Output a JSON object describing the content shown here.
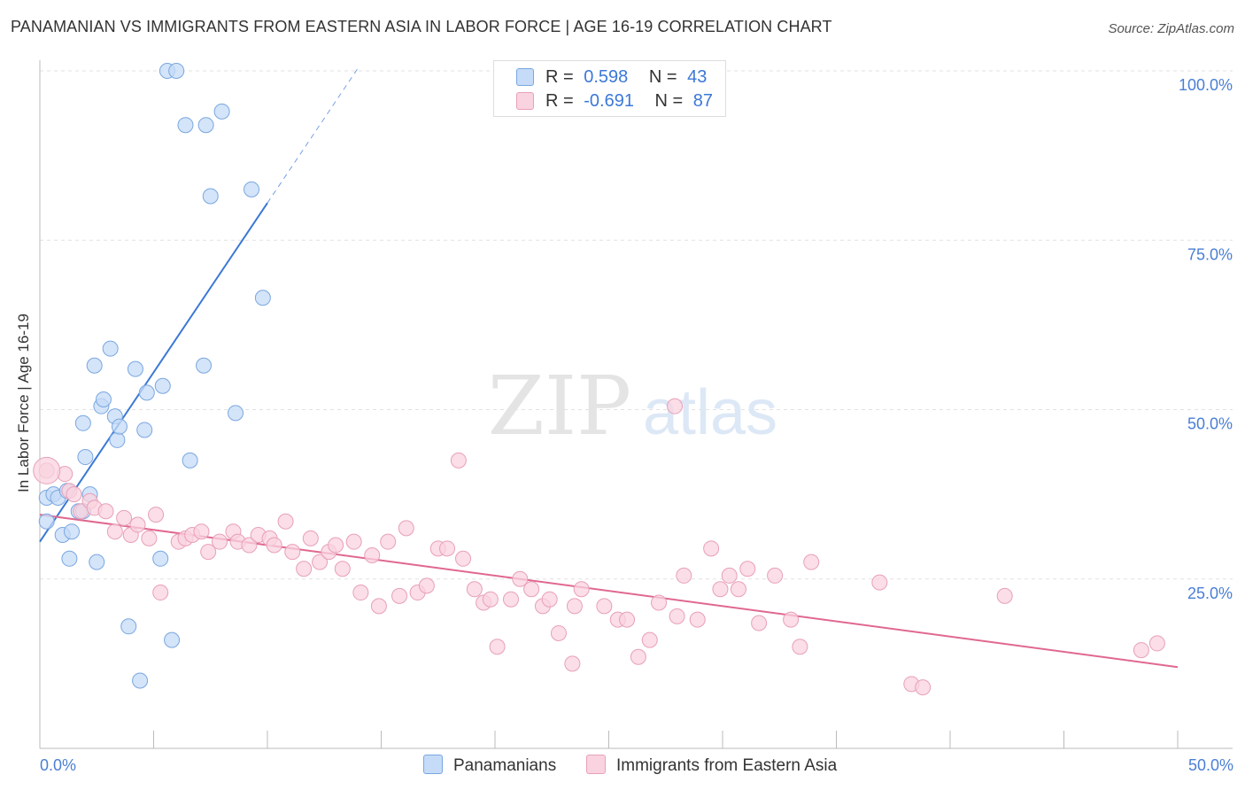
{
  "title": "PANAMANIAN VS IMMIGRANTS FROM EASTERN ASIA IN LABOR FORCE | AGE 16-19 CORRELATION CHART",
  "source": "Source: ZipAtlas.com",
  "watermark": {
    "zip": "ZIP",
    "atlas": "atlas"
  },
  "stats": [
    {
      "r_label": "R =",
      "r": "0.598",
      "n_label": "N =",
      "n": "43",
      "color": "#a8c8f0",
      "border": "#6a9fe0"
    },
    {
      "r_label": "R =",
      "r": "-0.691",
      "n_label": "N =",
      "n": "87",
      "color": "#f8c0d0",
      "border": "#e890b0"
    }
  ],
  "legend": [
    {
      "label": "Panamanians",
      "color": "#c5dbf7",
      "border": "#7aa7e0"
    },
    {
      "label": "Immigrants from Eastern Asia",
      "color": "#f9d3df",
      "border": "#e8a0b8"
    }
  ],
  "chart_data": {
    "type": "scatter",
    "title": "PANAMANIAN VS IMMIGRANTS FROM EASTERN ASIA IN LABOR FORCE | AGE 16-19 CORRELATION CHART",
    "xlabel": "",
    "ylabel": "In Labor Force | Age 16-19",
    "xlim": [
      0,
      50
    ],
    "ylim": [
      0,
      105
    ],
    "x_tick_labels": [
      "0.0%",
      "50.0%"
    ],
    "y_tick_labels": [
      "25.0%",
      "50.0%",
      "75.0%",
      "100.0%"
    ],
    "y_ticks": [
      25,
      50,
      75,
      100
    ],
    "grid": true,
    "series": [
      {
        "name": "Panamanians",
        "color": "#7aa7e0",
        "fill": "#c5dbf7",
        "line_color": "#3a78d6",
        "trend": {
          "x0": 0,
          "y0": 30.5,
          "x1": 10,
          "y1": 80.5,
          "dash_x1": 14,
          "dash_y1": 100.5
        },
        "points": [
          [
            0.3,
            33.5
          ],
          [
            0.3,
            37
          ],
          [
            0.6,
            37.5
          ],
          [
            0.8,
            37
          ],
          [
            1.0,
            31.5
          ],
          [
            1.2,
            38
          ],
          [
            1.3,
            28
          ],
          [
            1.4,
            32
          ],
          [
            1.7,
            35
          ],
          [
            1.9,
            48
          ],
          [
            1.9,
            35
          ],
          [
            2.0,
            43
          ],
          [
            2.2,
            37.5
          ],
          [
            2.4,
            56.5
          ],
          [
            2.5,
            27.5
          ],
          [
            2.7,
            50.5
          ],
          [
            2.8,
            51.5
          ],
          [
            3.1,
            59
          ],
          [
            3.3,
            49
          ],
          [
            3.4,
            45.5
          ],
          [
            3.5,
            47.5
          ],
          [
            3.9,
            18
          ],
          [
            4.2,
            56
          ],
          [
            4.4,
            10
          ],
          [
            4.6,
            47
          ],
          [
            4.7,
            52.5
          ],
          [
            5.3,
            28
          ],
          [
            5.4,
            53.5
          ],
          [
            5.8,
            16
          ],
          [
            5.6,
            100
          ],
          [
            6.0,
            100
          ],
          [
            6.4,
            92
          ],
          [
            6.6,
            42.5
          ],
          [
            7.2,
            56.5
          ],
          [
            7.3,
            92
          ],
          [
            7.5,
            81.5
          ],
          [
            8.0,
            94
          ],
          [
            8.6,
            49.5
          ],
          [
            9.3,
            82.5
          ],
          [
            9.8,
            66.5
          ]
        ]
      },
      {
        "name": "Immigrants from Eastern Asia",
        "color": "#e8a0b8",
        "fill": "#f9d3df",
        "line_color": "#e0688f",
        "trend": {
          "x0": 0,
          "y0": 34.5,
          "x1": 50,
          "y1": 12
        },
        "points": [
          [
            0.3,
            41
          ],
          [
            1.1,
            40.5
          ],
          [
            1.3,
            38
          ],
          [
            1.5,
            37.5
          ],
          [
            1.8,
            35
          ],
          [
            2.2,
            36.5
          ],
          [
            2.4,
            35.5
          ],
          [
            2.9,
            35
          ],
          [
            3.3,
            32
          ],
          [
            3.7,
            34
          ],
          [
            4.0,
            31.5
          ],
          [
            4.3,
            33
          ],
          [
            4.8,
            31
          ],
          [
            5.1,
            34.5
          ],
          [
            5.3,
            23
          ],
          [
            6.1,
            30.5
          ],
          [
            6.4,
            31
          ],
          [
            6.7,
            31.5
          ],
          [
            7.1,
            32
          ],
          [
            7.4,
            29
          ],
          [
            7.9,
            30.5
          ],
          [
            8.5,
            32
          ],
          [
            8.7,
            30.5
          ],
          [
            9.2,
            30
          ],
          [
            9.6,
            31.5
          ],
          [
            10.1,
            31
          ],
          [
            10.3,
            30
          ],
          [
            10.8,
            33.5
          ],
          [
            11.1,
            29
          ],
          [
            11.6,
            26.5
          ],
          [
            11.9,
            31
          ],
          [
            12.3,
            27.5
          ],
          [
            12.7,
            29
          ],
          [
            13.0,
            30
          ],
          [
            13.3,
            26.5
          ],
          [
            13.8,
            30.5
          ],
          [
            14.1,
            23
          ],
          [
            14.6,
            28.5
          ],
          [
            14.9,
            21
          ],
          [
            15.3,
            30.5
          ],
          [
            15.8,
            22.5
          ],
          [
            16.1,
            32.5
          ],
          [
            16.6,
            23
          ],
          [
            17.0,
            24
          ],
          [
            17.5,
            29.5
          ],
          [
            17.9,
            29.5
          ],
          [
            18.4,
            42.5
          ],
          [
            18.6,
            28
          ],
          [
            19.1,
            23.5
          ],
          [
            19.5,
            21.5
          ],
          [
            19.8,
            22
          ],
          [
            20.1,
            15
          ],
          [
            20.7,
            22
          ],
          [
            21.1,
            25
          ],
          [
            21.6,
            23.5
          ],
          [
            22.1,
            21
          ],
          [
            22.4,
            22
          ],
          [
            22.8,
            17
          ],
          [
            23.5,
            21
          ],
          [
            23.8,
            23.5
          ],
          [
            23.4,
            12.5
          ],
          [
            24.8,
            21
          ],
          [
            25.4,
            19
          ],
          [
            25.8,
            19
          ],
          [
            26.3,
            13.5
          ],
          [
            26.8,
            16
          ],
          [
            27.2,
            21.5
          ],
          [
            28.0,
            19.5
          ],
          [
            28.3,
            25.5
          ],
          [
            27.9,
            50.5
          ],
          [
            28.9,
            19
          ],
          [
            29.5,
            29.5
          ],
          [
            29.9,
            23.5
          ],
          [
            30.3,
            25.5
          ],
          [
            30.7,
            23.5
          ],
          [
            31.1,
            26.5
          ],
          [
            31.6,
            18.5
          ],
          [
            32.3,
            25.5
          ],
          [
            33.0,
            19
          ],
          [
            33.4,
            15
          ],
          [
            33.9,
            27.5
          ],
          [
            36.9,
            24.5
          ],
          [
            38.3,
            9.5
          ],
          [
            38.8,
            9
          ],
          [
            42.4,
            22.5
          ],
          [
            48.4,
            14.5
          ],
          [
            49.1,
            15.5
          ]
        ]
      }
    ]
  }
}
